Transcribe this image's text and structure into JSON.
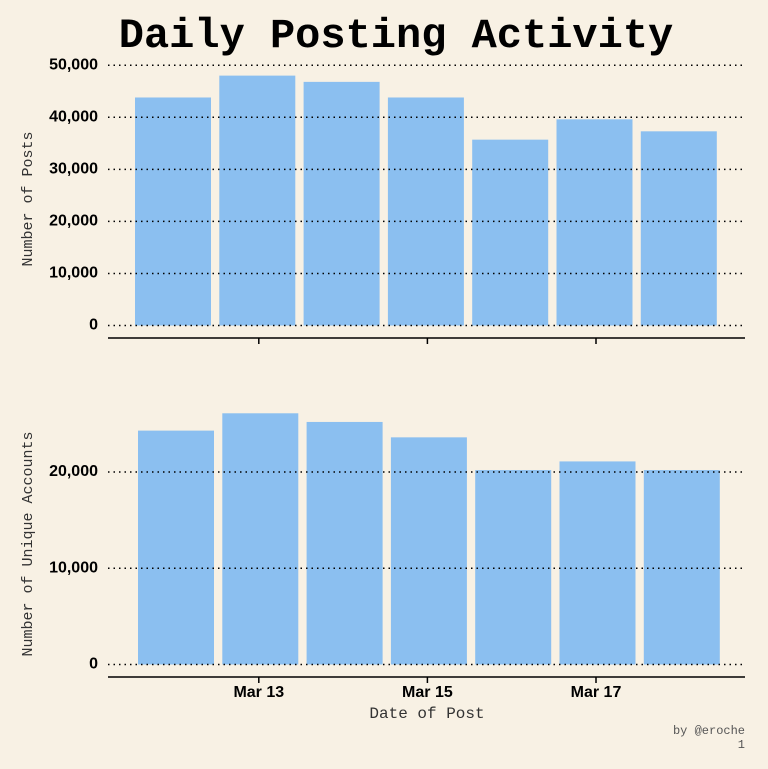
{
  "title": "Daily Posting Activity",
  "credit": "by @eroche",
  "page_number": "1",
  "chart_data": [
    {
      "type": "bar",
      "ylabel": "Number of Posts",
      "color": "#8bbff0",
      "grid": true,
      "values": [
        43800,
        48000,
        46800,
        43800,
        35700,
        39600,
        37300
      ],
      "ylim": [
        -2400,
        51000
      ],
      "yticks": [
        0,
        {
          "value": 10000,
          "label": "10,000"
        },
        {
          "value": 20000,
          "label": "20,000"
        },
        {
          "value": 30000,
          "label": "30,000"
        },
        {
          "value": 40000,
          "label": "40,000"
        },
        {
          "value": 50000,
          "label": "50,000"
        }
      ]
    },
    {
      "type": "bar",
      "ylabel": "Number of Unique Accounts",
      "xlabel": "Date of Post",
      "color": "#8bbff0",
      "grid": true,
      "categories": [
        null,
        "Mar 13",
        null,
        "Mar 15",
        null,
        "Mar 17",
        null
      ],
      "values": [
        24300,
        26100,
        25200,
        23600,
        20200,
        21100,
        20200
      ],
      "ylim": [
        -1300,
        28000
      ],
      "yticks": [
        0,
        {
          "value": 10000,
          "label": "10,000"
        },
        {
          "value": 20000,
          "label": "20,000"
        }
      ]
    }
  ]
}
